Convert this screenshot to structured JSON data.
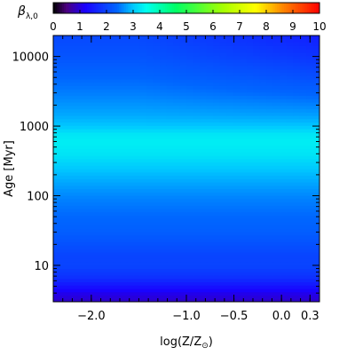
{
  "chart_data": {
    "type": "heatmap",
    "title": "",
    "colorbar": {
      "label_main": "β",
      "label_sub": "λ,0",
      "range": [
        0,
        10
      ],
      "ticks": [
        "0",
        "1",
        "2",
        "3",
        "4",
        "5",
        "6",
        "7",
        "8",
        "9",
        "10"
      ],
      "colormap": "rainbow",
      "stops": [
        {
          "v": 0,
          "color": "#000000"
        },
        {
          "v": 0.5,
          "color": "#4b007f"
        },
        {
          "v": 1.2,
          "color": "#1a00ff"
        },
        {
          "v": 2.4,
          "color": "#0066ff"
        },
        {
          "v": 3.0,
          "color": "#00c8ff"
        },
        {
          "v": 3.5,
          "color": "#00ffee"
        },
        {
          "v": 4.6,
          "color": "#00ff66"
        },
        {
          "v": 6.4,
          "color": "#a8ff00"
        },
        {
          "v": 7.6,
          "color": "#ffff00"
        },
        {
          "v": 8.6,
          "color": "#ff8800"
        },
        {
          "v": 10,
          "color": "#ff0000"
        }
      ]
    },
    "xlabel_main": "log(Z/Z",
    "xlabel_sub": "⊙",
    "xlabel_close": ")",
    "xlim": [
      -2.4,
      0.4
    ],
    "xticks": [
      {
        "value": -2.0,
        "label": "−2.0"
      },
      {
        "value": -1.0,
        "label": "−1.0"
      },
      {
        "value": -0.5,
        "label": "−0.5"
      },
      {
        "value": 0.0,
        "label": "0.0"
      },
      {
        "value": 0.3,
        "label": "0.3"
      }
    ],
    "ylabel": "Age [Myr]",
    "yscale": "log",
    "ylim": [
      3,
      20000
    ],
    "yticks": [
      {
        "value": 10,
        "label": "10"
      },
      {
        "value": 100,
        "label": "100"
      },
      {
        "value": 1000,
        "label": "1000"
      },
      {
        "value": 10000,
        "label": "10000"
      }
    ],
    "age_profile": [
      {
        "age": 3,
        "beta": 0.9
      },
      {
        "age": 4,
        "beta": 1.1
      },
      {
        "age": 5,
        "beta": 1.4
      },
      {
        "age": 7,
        "beta": 1.8
      },
      {
        "age": 10,
        "beta": 2.0
      },
      {
        "age": 14,
        "beta": 2.0
      },
      {
        "age": 18,
        "beta": 2.1
      },
      {
        "age": 30,
        "beta": 2.3
      },
      {
        "age": 60,
        "beta": 2.45
      },
      {
        "age": 100,
        "beta": 2.6
      },
      {
        "age": 200,
        "beta": 2.9
      },
      {
        "age": 400,
        "beta": 3.25
      },
      {
        "age": 600,
        "beta": 3.35
      },
      {
        "age": 800,
        "beta": 3.25
      },
      {
        "age": 1000,
        "beta": 3.0
      },
      {
        "age": 1500,
        "beta": 2.8
      },
      {
        "age": 3000,
        "beta": 2.55
      },
      {
        "age": 6000,
        "beta": 2.35
      },
      {
        "age": 10000,
        "beta": 2.2
      },
      {
        "age": 20000,
        "beta": 2.05
      }
    ],
    "high_z_old_decrement": 0.5
  }
}
